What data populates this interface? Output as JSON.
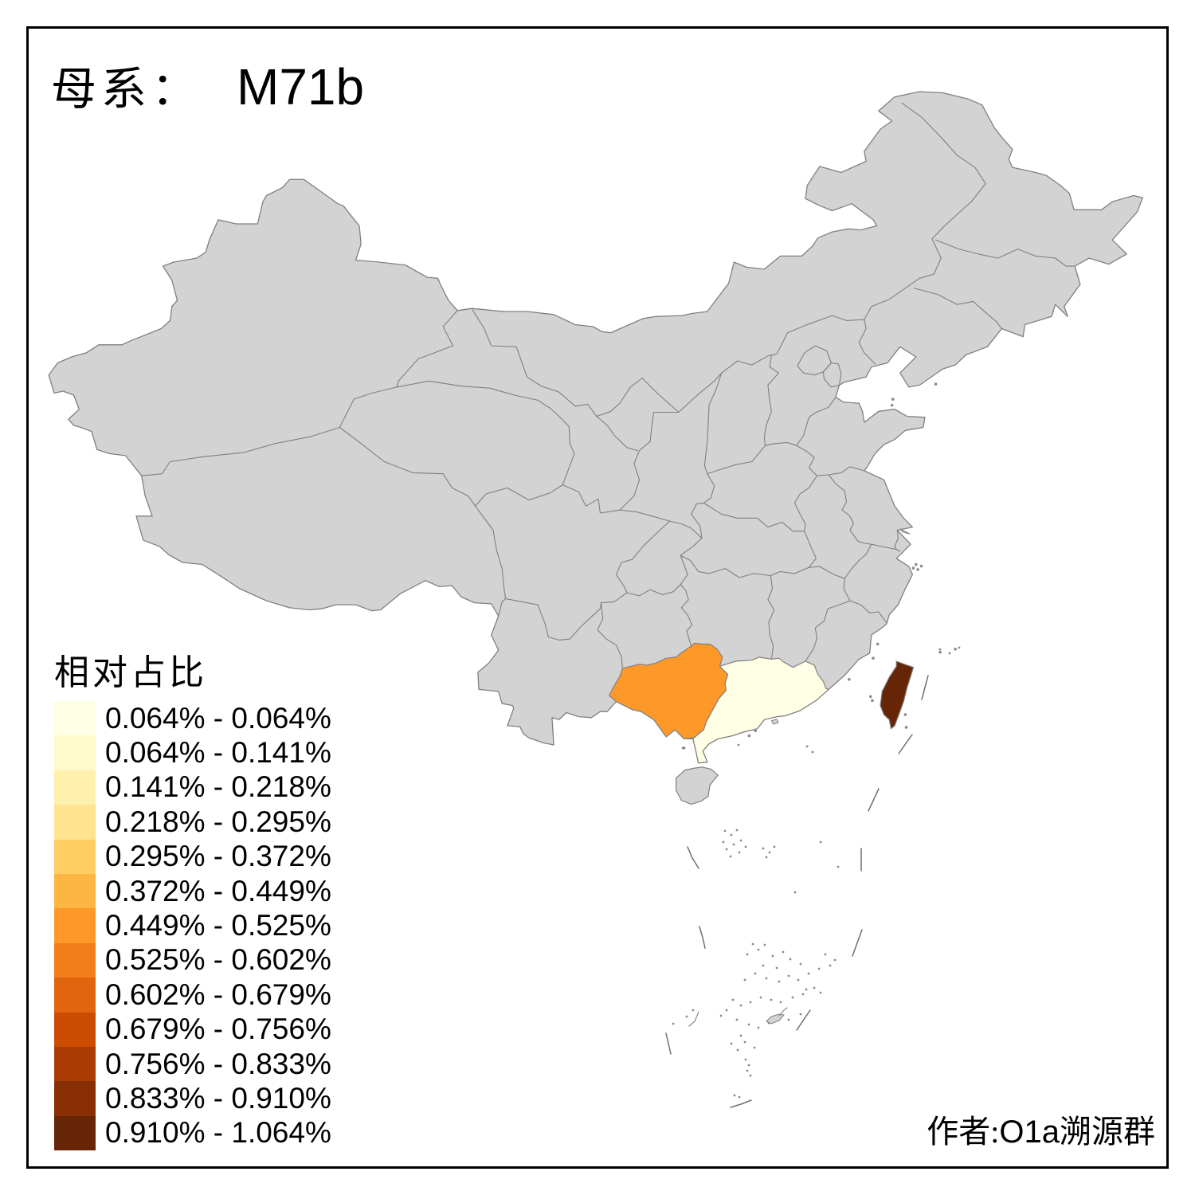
{
  "title": {
    "prefix": "母系：",
    "value": "M71b"
  },
  "legend": {
    "title": "相对占比",
    "items": [
      {
        "range": "0.064% - 0.064%",
        "color": "#FFFFE5"
      },
      {
        "range": "0.064% - 0.141%",
        "color": "#FFFACA"
      },
      {
        "range": "0.141% - 0.218%",
        "color": "#FFF0AE"
      },
      {
        "range": "0.218% - 0.295%",
        "color": "#FEE391"
      },
      {
        "range": "0.295% - 0.372%",
        "color": "#FECE65"
      },
      {
        "range": "0.372% - 0.449%",
        "color": "#FEB642"
      },
      {
        "range": "0.449% - 0.525%",
        "color": "#FE9929"
      },
      {
        "range": "0.525% - 0.602%",
        "color": "#F27E1B"
      },
      {
        "range": "0.602% - 0.679%",
        "color": "#E1640E"
      },
      {
        "range": "0.679% - 0.756%",
        "color": "#CC4C02"
      },
      {
        "range": "0.756% - 0.833%",
        "color": "#AA3C03"
      },
      {
        "range": "0.833% - 0.910%",
        "color": "#882F05"
      },
      {
        "range": "0.910% - 1.064%",
        "color": "#662506"
      }
    ]
  },
  "attribution": {
    "text": "作者:O1a溯源群",
    "prefix": "作者:",
    "group": "O1a",
    "suffix": "溯源群"
  },
  "map": {
    "type": "choropleth",
    "land_fill": "#D3D3D3",
    "border_color": "#808080",
    "frame_color": "#000000",
    "background": "#FFFFFF",
    "regions": [
      {
        "name": "Guangxi",
        "color": "#FE9929",
        "range": "0.449% - 0.525%"
      },
      {
        "name": "Guangdong",
        "color": "#FFFFE5",
        "range": "0.064% - 0.064%"
      },
      {
        "name": "Taiwan",
        "color": "#662506",
        "range": "0.910% - 1.064%"
      }
    ]
  }
}
